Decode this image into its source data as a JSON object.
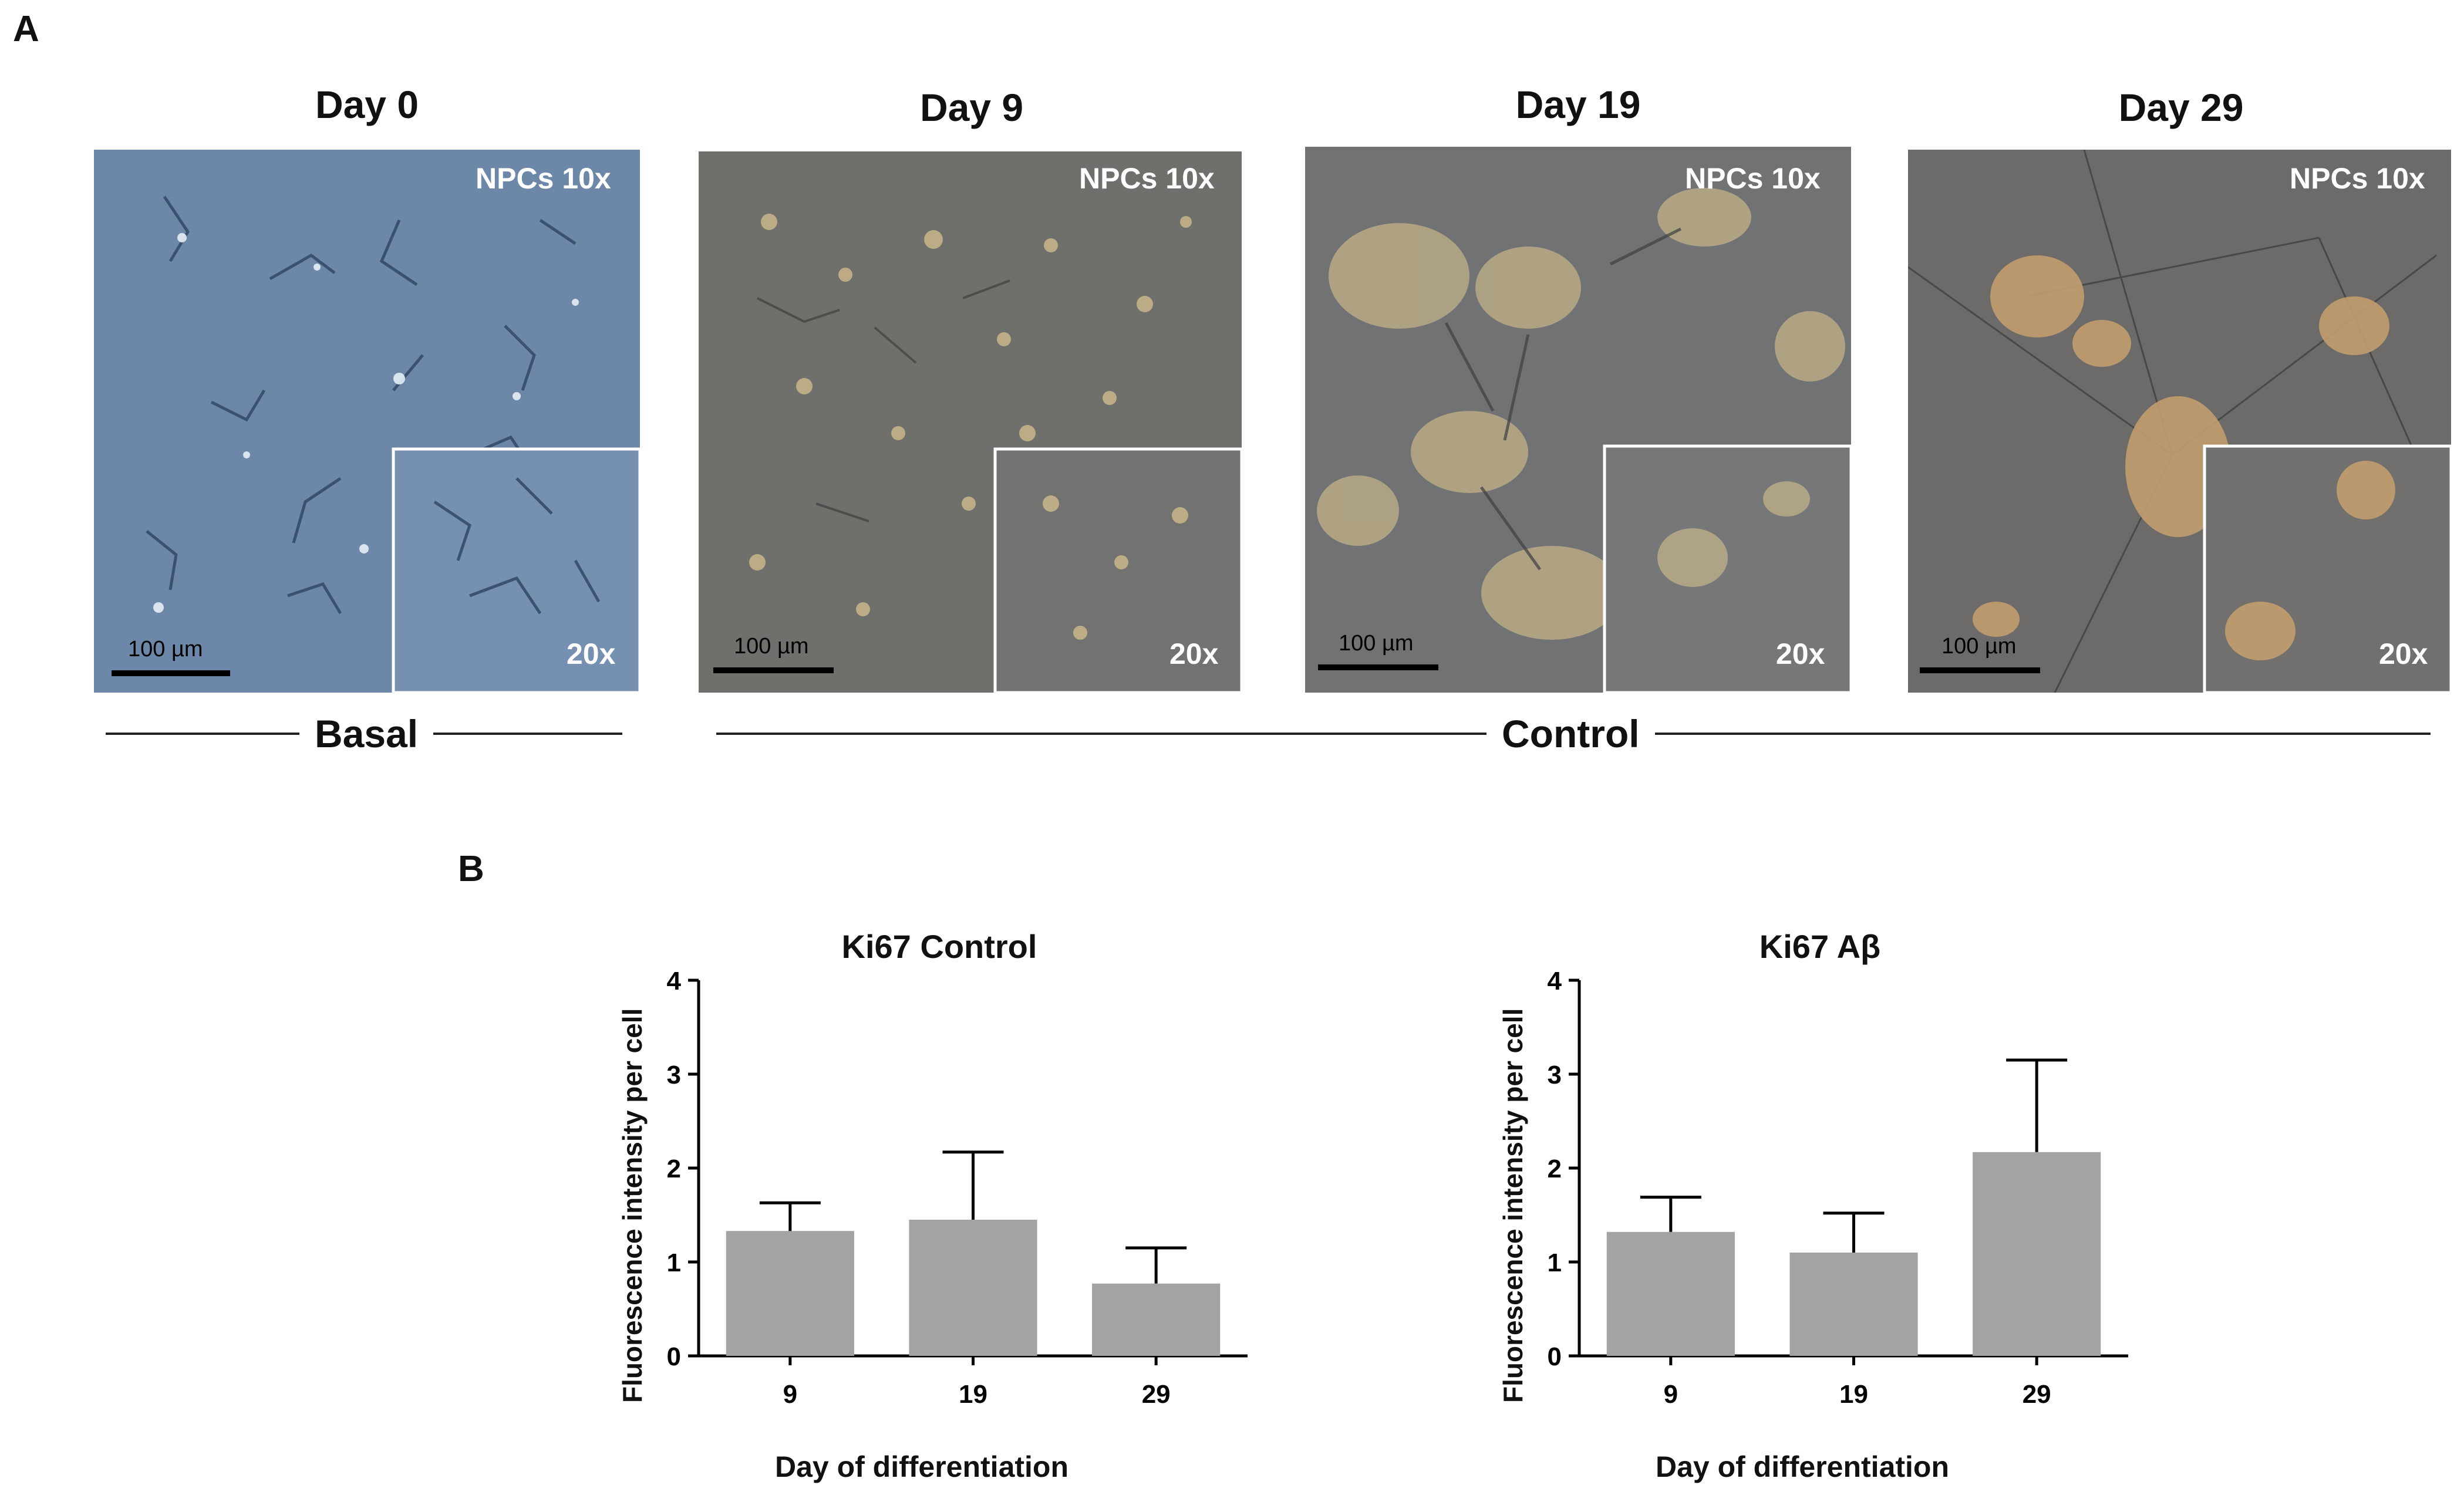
{
  "figure": {
    "panel_a_letter": "A",
    "panel_b_letter": "B"
  },
  "micrographs": [
    {
      "day": "Day 0",
      "magnification": "NPCs 10x",
      "inset": "20x",
      "scale": "100 µm",
      "tone": "#6d87a6"
    },
    {
      "day": "Day 9",
      "magnification": "NPCs 10x",
      "inset": "20x",
      "scale": "100 µm",
      "tone": "#6f6f6d"
    },
    {
      "day": "Day 19",
      "magnification": "NPCs 10x",
      "inset": "20x",
      "scale": "100 µm",
      "tone": "#6e7072"
    },
    {
      "day": "Day 29",
      "magnification": "NPCs 10x",
      "inset": "20x",
      "scale": "100 µm",
      "tone": "#6c6b69"
    }
  ],
  "groups": {
    "basal": "Basal",
    "control": "Control"
  },
  "chart_data": [
    {
      "type": "bar",
      "title": "Ki67 Control",
      "xlabel": "Day of differentiation",
      "ylabel": "Fluorescence intensity per cell",
      "categories": [
        "9",
        "19",
        "29"
      ],
      "values": [
        1.33,
        1.45,
        0.77
      ],
      "error": [
        0.3,
        0.72,
        0.38
      ],
      "ylim": [
        0,
        4
      ],
      "yticks": [
        "0",
        "1",
        "2",
        "3",
        "4"
      ],
      "bar_color": "#a3a3a6"
    },
    {
      "type": "bar",
      "title": "Ki67 Aβ",
      "xlabel": "Day of differentiation",
      "ylabel": "Fluorescence intensity per cell",
      "categories": [
        "9",
        "19",
        "29"
      ],
      "values": [
        1.32,
        1.1,
        2.17
      ],
      "error": [
        0.37,
        0.42,
        0.98
      ],
      "ylim": [
        0,
        4
      ],
      "yticks": [
        "0",
        "1",
        "2",
        "3",
        "4"
      ],
      "bar_color": "#a3a3a6"
    }
  ]
}
